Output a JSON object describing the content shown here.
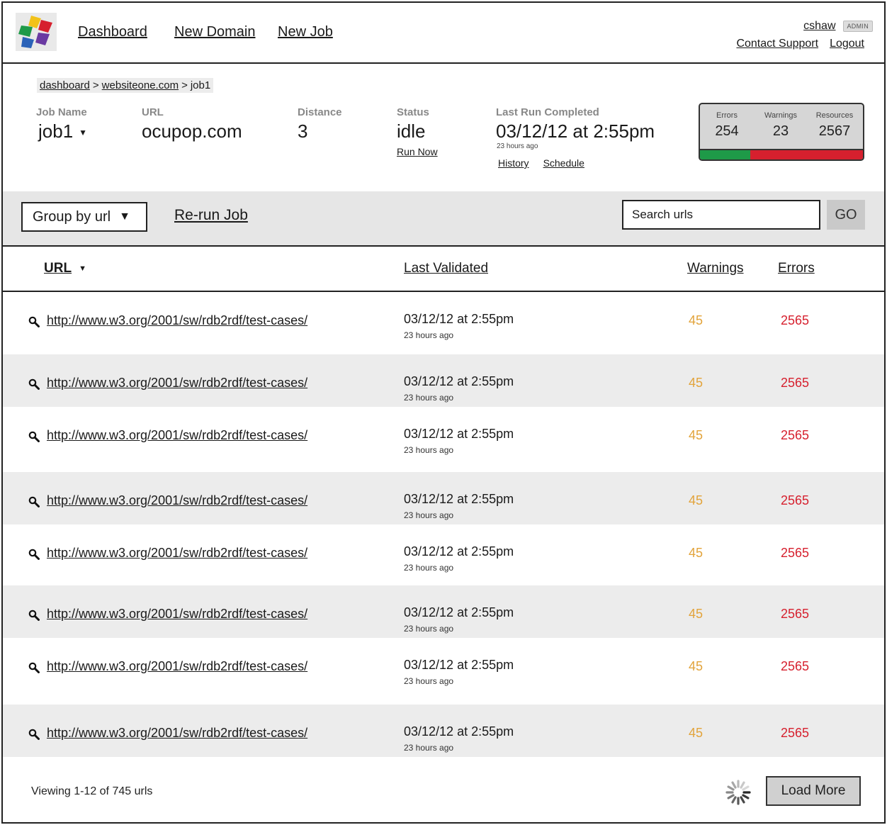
{
  "nav": {
    "dashboard": "Dashboard",
    "new_domain": "New Domain",
    "new_job": "New Job"
  },
  "user": {
    "name": "cshaw",
    "role": "ADMIN",
    "contact": "Contact Support",
    "logout": "Logout"
  },
  "breadcrumb": {
    "home": "dashboard",
    "domain": "websiteone.com",
    "sep": ">",
    "current": "job1"
  },
  "job": {
    "job_name_label": "Job Name",
    "job_name": "job1",
    "url_label": "URL",
    "url": "ocupop.com",
    "distance_label": "Distance",
    "distance": "3",
    "status_label": "Status",
    "status": "idle",
    "run_now": "Run Now",
    "last_run_label": "Last Run Completed",
    "last_run": "03/12/12 at 2:55pm",
    "last_run_ago": "23 hours ago",
    "history": "History",
    "schedule": "Schedule"
  },
  "stats": {
    "errors_label": "Errors",
    "errors": "254",
    "warnings_label": "Warnings",
    "warnings": "23",
    "resources_label": "Resources",
    "resources": "2567",
    "green_fraction": 0.31,
    "green_color": "#1e9a48",
    "red_color": "#d6202e"
  },
  "toolbar": {
    "group_by": "Group by url",
    "rerun": "Re-run Job",
    "search_placeholder": "Search urls",
    "go": "GO"
  },
  "table": {
    "headers": {
      "url": "URL",
      "last_validated": "Last Validated",
      "warnings": "Warnings",
      "errors": "Errors"
    },
    "rows": [
      {
        "url": "http://www.w3.org/2001/sw/rdb2rdf/test-cases/",
        "date": "03/12/12 at 2:55pm",
        "ago": "23 hours ago",
        "warnings": "45",
        "errors": "2565"
      },
      {
        "url": "http://www.w3.org/2001/sw/rdb2rdf/test-cases/",
        "date": "03/12/12 at 2:55pm",
        "ago": "23 hours ago",
        "warnings": "45",
        "errors": "2565"
      },
      {
        "url": "http://www.w3.org/2001/sw/rdb2rdf/test-cases/",
        "date": "03/12/12 at 2:55pm",
        "ago": "23 hours ago",
        "warnings": "45",
        "errors": "2565"
      },
      {
        "url": "http://www.w3.org/2001/sw/rdb2rdf/test-cases/",
        "date": "03/12/12 at 2:55pm",
        "ago": "23 hours ago",
        "warnings": "45",
        "errors": "2565"
      },
      {
        "url": "http://www.w3.org/2001/sw/rdb2rdf/test-cases/",
        "date": "03/12/12 at 2:55pm",
        "ago": "23 hours ago",
        "warnings": "45",
        "errors": "2565"
      },
      {
        "url": "http://www.w3.org/2001/sw/rdb2rdf/test-cases/",
        "date": "03/12/12 at 2:55pm",
        "ago": "23 hours ago",
        "warnings": "45",
        "errors": "2565"
      },
      {
        "url": "http://www.w3.org/2001/sw/rdb2rdf/test-cases/",
        "date": "03/12/12 at 2:55pm",
        "ago": "23 hours ago",
        "warnings": "45",
        "errors": "2565"
      },
      {
        "url": "http://www.w3.org/2001/sw/rdb2rdf/test-cases/",
        "date": "03/12/12 at 2:55pm",
        "ago": "23 hours ago",
        "warnings": "45",
        "errors": "2565"
      }
    ]
  },
  "footer": {
    "viewing": "Viewing 1-12 of 745 urls",
    "load_more": "Load More"
  },
  "colors": {
    "warning": "#e2a33a",
    "error": "#d6202e"
  }
}
